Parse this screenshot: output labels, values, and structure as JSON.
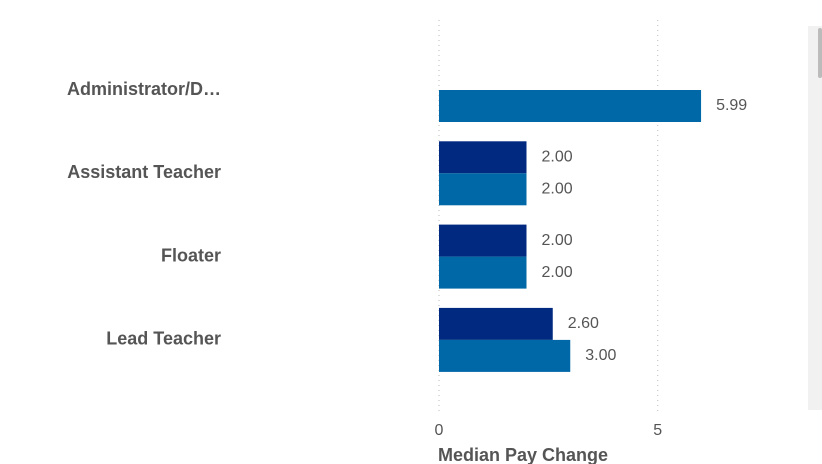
{
  "chart_data": {
    "type": "hbar",
    "categories": [
      "Administrator/D…",
      "Assistant Teacher",
      "Floater",
      "Lead Teacher"
    ],
    "series": [
      {
        "color": "#00297f",
        "values": [
          null,
          2,
          2,
          2.6
        ],
        "value_labels": [
          null,
          "2.00",
          "2.00",
          "2.60"
        ]
      },
      {
        "color": "#0068a6",
        "values": [
          5.99,
          2,
          2,
          3
        ],
        "value_labels": [
          "5.99",
          "2.00",
          "2.00",
          "3.00"
        ]
      }
    ],
    "xlim": [
      0,
      8
    ],
    "xticks": [
      0,
      5
    ],
    "grid": true,
    "x_label": "Median Pay Change"
  }
}
